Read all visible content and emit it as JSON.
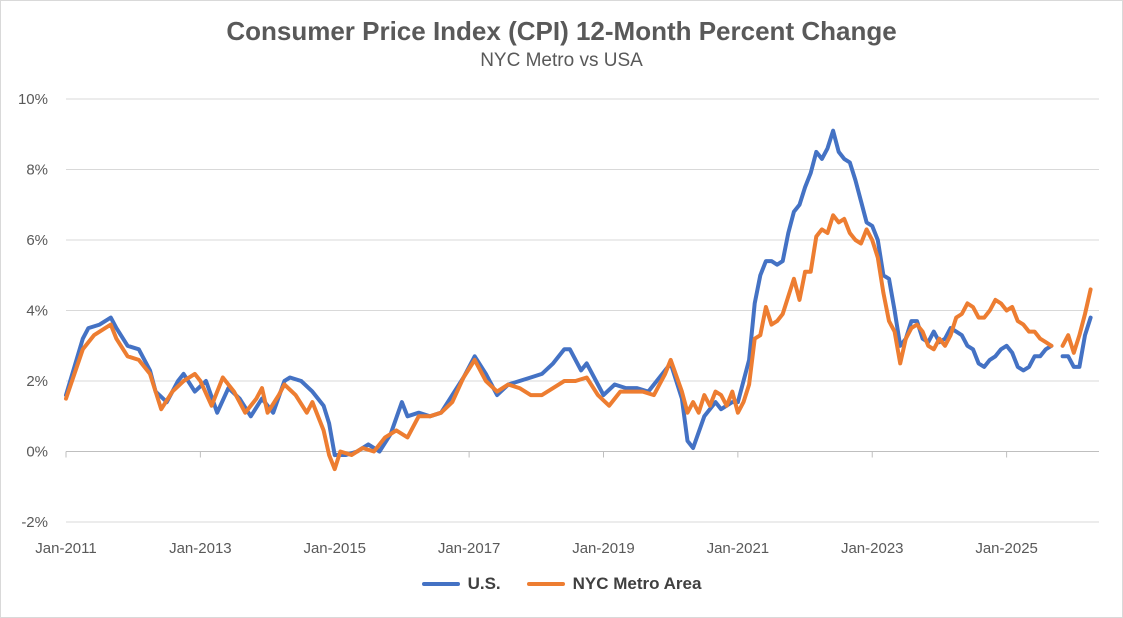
{
  "chart_data": {
    "type": "line",
    "title": "Consumer Price Index (CPI) 12-Month Percent Change",
    "subtitle": "NYC Metro vs USA",
    "xlabel": "",
    "ylabel": "",
    "ylim": [
      -2,
      10
    ],
    "xlim": [
      "Jan-2011",
      "Dec-2025"
    ],
    "grid": true,
    "legend_position": "bottom",
    "y_ticks": [
      "-2%",
      "0%",
      "2%",
      "4%",
      "6%",
      "8%",
      "10%"
    ],
    "x_ticks": [
      "Jan-2011",
      "Jan-2013",
      "Jan-2015",
      "Jan-2017",
      "Jan-2019",
      "Jan-2021",
      "Jan-2023",
      "Jan-2025"
    ],
    "series": [
      {
        "name": "U.S.",
        "color": "#4472c4",
        "points": [
          [
            "Jan-2011",
            1.6
          ],
          [
            "Apr-2011",
            3.2
          ],
          [
            "May-2011",
            3.5
          ],
          [
            "Jul-2011",
            3.6
          ],
          [
            "Sep-2011",
            3.8
          ],
          [
            "Oct-2011",
            3.5
          ],
          [
            "Dec-2011",
            3.0
          ],
          [
            "Feb-2012",
            2.9
          ],
          [
            "Apr-2012",
            2.3
          ],
          [
            "May-2012",
            1.7
          ],
          [
            "Jul-2012",
            1.4
          ],
          [
            "Sep-2012",
            2.0
          ],
          [
            "Oct-2012",
            2.2
          ],
          [
            "Dec-2012",
            1.7
          ],
          [
            "Feb-2013",
            2.0
          ],
          [
            "Apr-2013",
            1.1
          ],
          [
            "Jun-2013",
            1.8
          ],
          [
            "Aug-2013",
            1.5
          ],
          [
            "Oct-2013",
            1.0
          ],
          [
            "Dec-2013",
            1.5
          ],
          [
            "Feb-2014",
            1.1
          ],
          [
            "Apr-2014",
            2.0
          ],
          [
            "May-2014",
            2.1
          ],
          [
            "Jul-2014",
            2.0
          ],
          [
            "Sep-2014",
            1.7
          ],
          [
            "Nov-2014",
            1.3
          ],
          [
            "Dec-2014",
            0.8
          ],
          [
            "Jan-2015",
            -0.1
          ],
          [
            "Mar-2015",
            -0.1
          ],
          [
            "May-2015",
            0.0
          ],
          [
            "Jul-2015",
            0.2
          ],
          [
            "Sep-2015",
            0.0
          ],
          [
            "Nov-2015",
            0.5
          ],
          [
            "Jan-2016",
            1.4
          ],
          [
            "Feb-2016",
            1.0
          ],
          [
            "Apr-2016",
            1.1
          ],
          [
            "Jun-2016",
            1.0
          ],
          [
            "Aug-2016",
            1.1
          ],
          [
            "Oct-2016",
            1.6
          ],
          [
            "Dec-2016",
            2.1
          ],
          [
            "Feb-2017",
            2.7
          ],
          [
            "Apr-2017",
            2.2
          ],
          [
            "Jun-2017",
            1.6
          ],
          [
            "Aug-2017",
            1.9
          ],
          [
            "Oct-2017",
            2.0
          ],
          [
            "Dec-2017",
            2.1
          ],
          [
            "Feb-2018",
            2.2
          ],
          [
            "Apr-2018",
            2.5
          ],
          [
            "Jun-2018",
            2.9
          ],
          [
            "Jul-2018",
            2.9
          ],
          [
            "Sep-2018",
            2.3
          ],
          [
            "Oct-2018",
            2.5
          ],
          [
            "Dec-2018",
            1.9
          ],
          [
            "Jan-2019",
            1.6
          ],
          [
            "Mar-2019",
            1.9
          ],
          [
            "May-2019",
            1.8
          ],
          [
            "Jul-2019",
            1.8
          ],
          [
            "Sep-2019",
            1.7
          ],
          [
            "Nov-2019",
            2.1
          ],
          [
            "Jan-2020",
            2.5
          ],
          [
            "Mar-2020",
            1.5
          ],
          [
            "Apr-2020",
            0.3
          ],
          [
            "May-2020",
            0.1
          ],
          [
            "Jul-2020",
            1.0
          ],
          [
            "Sep-2020",
            1.4
          ],
          [
            "Oct-2020",
            1.2
          ],
          [
            "Dec-2020",
            1.4
          ],
          [
            "Jan-2021",
            1.4
          ],
          [
            "Mar-2021",
            2.6
          ],
          [
            "Apr-2021",
            4.2
          ],
          [
            "May-2021",
            5.0
          ],
          [
            "Jun-2021",
            5.4
          ],
          [
            "Jul-2021",
            5.4
          ],
          [
            "Aug-2021",
            5.3
          ],
          [
            "Sep-2021",
            5.4
          ],
          [
            "Oct-2021",
            6.2
          ],
          [
            "Nov-2021",
            6.8
          ],
          [
            "Dec-2021",
            7.0
          ],
          [
            "Jan-2022",
            7.5
          ],
          [
            "Feb-2022",
            7.9
          ],
          [
            "Mar-2022",
            8.5
          ],
          [
            "Apr-2022",
            8.3
          ],
          [
            "May-2022",
            8.6
          ],
          [
            "Jun-2022",
            9.1
          ],
          [
            "Jul-2022",
            8.5
          ],
          [
            "Aug-2022",
            8.3
          ],
          [
            "Sep-2022",
            8.2
          ],
          [
            "Oct-2022",
            7.7
          ],
          [
            "Nov-2022",
            7.1
          ],
          [
            "Dec-2022",
            6.5
          ],
          [
            "Jan-2023",
            6.4
          ],
          [
            "Feb-2023",
            6.0
          ],
          [
            "Mar-2023",
            5.0
          ],
          [
            "Apr-2023",
            4.9
          ],
          [
            "May-2023",
            4.0
          ],
          [
            "Jun-2023",
            3.0
          ],
          [
            "Jul-2023",
            3.2
          ],
          [
            "Aug-2023",
            3.7
          ],
          [
            "Sep-2023",
            3.7
          ],
          [
            "Oct-2023",
            3.2
          ],
          [
            "Nov-2023",
            3.1
          ],
          [
            "Dec-2023",
            3.4
          ],
          [
            "Jan-2024",
            3.1
          ],
          [
            "Feb-2024",
            3.2
          ],
          [
            "Mar-2024",
            3.5
          ],
          [
            "Apr-2024",
            3.4
          ],
          [
            "May-2024",
            3.3
          ],
          [
            "Jun-2024",
            3.0
          ],
          [
            "Jul-2024",
            2.9
          ],
          [
            "Aug-2024",
            2.5
          ],
          [
            "Sep-2024",
            2.4
          ],
          [
            "Oct-2024",
            2.6
          ],
          [
            "Nov-2024",
            2.7
          ],
          [
            "Dec-2024",
            2.9
          ],
          [
            "Jan-2025",
            3.0
          ],
          [
            "Feb-2025",
            2.8
          ],
          [
            "Mar-2025",
            2.4
          ],
          [
            "Apr-2025",
            2.3
          ],
          [
            "May-2025",
            2.4
          ],
          [
            "Jun-2025",
            2.7
          ],
          [
            "Jul-2025",
            2.7
          ],
          [
            "Aug-2025",
            2.9
          ],
          [
            "Sep-2025",
            3.0
          ],
          [
            "Oct-2025",
            null
          ],
          [
            "Nov-2025",
            2.7
          ],
          [
            "Dec-2025",
            2.7
          ],
          [
            "Jan-2026",
            2.4
          ],
          [
            "Feb-2026",
            2.4
          ],
          [
            "Mar-2026",
            3.3
          ],
          [
            "Apr-2026",
            3.8
          ]
        ]
      },
      {
        "name": "NYC Metro Area",
        "color": "#ed7d31",
        "points": [
          [
            "Jan-2011",
            1.5
          ],
          [
            "Apr-2011",
            2.9
          ],
          [
            "Jun-2011",
            3.3
          ],
          [
            "Aug-2011",
            3.5
          ],
          [
            "Sep-2011",
            3.6
          ],
          [
            "Oct-2011",
            3.2
          ],
          [
            "Dec-2011",
            2.7
          ],
          [
            "Feb-2012",
            2.6
          ],
          [
            "Apr-2012",
            2.2
          ],
          [
            "Jun-2012",
            1.2
          ],
          [
            "Aug-2012",
            1.7
          ],
          [
            "Oct-2012",
            2.0
          ],
          [
            "Dec-2012",
            2.2
          ],
          [
            "Jan-2013",
            2.0
          ],
          [
            "Mar-2013",
            1.3
          ],
          [
            "May-2013",
            2.1
          ],
          [
            "Jul-2013",
            1.7
          ],
          [
            "Sep-2013",
            1.1
          ],
          [
            "Nov-2013",
            1.5
          ],
          [
            "Dec-2013",
            1.8
          ],
          [
            "Jan-2014",
            1.1
          ],
          [
            "Mar-2014",
            1.6
          ],
          [
            "Apr-2014",
            1.9
          ],
          [
            "Jun-2014",
            1.6
          ],
          [
            "Aug-2014",
            1.1
          ],
          [
            "Sep-2014",
            1.4
          ],
          [
            "Nov-2014",
            0.6
          ],
          [
            "Dec-2014",
            -0.1
          ],
          [
            "Jan-2015",
            -0.5
          ],
          [
            "Feb-2015",
            0.0
          ],
          [
            "Apr-2015",
            -0.1
          ],
          [
            "Jun-2015",
            0.1
          ],
          [
            "Aug-2015",
            0.0
          ],
          [
            "Oct-2015",
            0.4
          ],
          [
            "Dec-2015",
            0.6
          ],
          [
            "Feb-2016",
            0.4
          ],
          [
            "Apr-2016",
            1.0
          ],
          [
            "Jun-2016",
            1.0
          ],
          [
            "Aug-2016",
            1.1
          ],
          [
            "Oct-2016",
            1.4
          ],
          [
            "Dec-2016",
            2.1
          ],
          [
            "Feb-2017",
            2.6
          ],
          [
            "Apr-2017",
            2.0
          ],
          [
            "Jun-2017",
            1.7
          ],
          [
            "Aug-2017",
            1.9
          ],
          [
            "Oct-2017",
            1.8
          ],
          [
            "Dec-2017",
            1.6
          ],
          [
            "Feb-2018",
            1.6
          ],
          [
            "Apr-2018",
            1.8
          ],
          [
            "Jun-2018",
            2.0
          ],
          [
            "Aug-2018",
            2.0
          ],
          [
            "Oct-2018",
            2.1
          ],
          [
            "Dec-2018",
            1.6
          ],
          [
            "Feb-2019",
            1.3
          ],
          [
            "Apr-2019",
            1.7
          ],
          [
            "Jun-2019",
            1.7
          ],
          [
            "Aug-2019",
            1.7
          ],
          [
            "Oct-2019",
            1.6
          ],
          [
            "Dec-2019",
            2.2
          ],
          [
            "Jan-2020",
            2.6
          ],
          [
            "Mar-2020",
            1.7
          ],
          [
            "Apr-2020",
            1.1
          ],
          [
            "May-2020",
            1.4
          ],
          [
            "Jun-2020",
            1.1
          ],
          [
            "Jul-2020",
            1.6
          ],
          [
            "Aug-2020",
            1.3
          ],
          [
            "Sep-2020",
            1.7
          ],
          [
            "Oct-2020",
            1.6
          ],
          [
            "Nov-2020",
            1.3
          ],
          [
            "Dec-2020",
            1.7
          ],
          [
            "Jan-2021",
            1.1
          ],
          [
            "Feb-2021",
            1.4
          ],
          [
            "Mar-2021",
            1.9
          ],
          [
            "Apr-2021",
            3.2
          ],
          [
            "May-2021",
            3.3
          ],
          [
            "Jun-2021",
            4.1
          ],
          [
            "Jul-2021",
            3.6
          ],
          [
            "Aug-2021",
            3.7
          ],
          [
            "Sep-2021",
            3.9
          ],
          [
            "Oct-2021",
            4.4
          ],
          [
            "Nov-2021",
            4.9
          ],
          [
            "Dec-2021",
            4.3
          ],
          [
            "Jan-2022",
            5.1
          ],
          [
            "Feb-2022",
            5.1
          ],
          [
            "Mar-2022",
            6.1
          ],
          [
            "Apr-2022",
            6.3
          ],
          [
            "May-2022",
            6.2
          ],
          [
            "Jun-2022",
            6.7
          ],
          [
            "Jul-2022",
            6.5
          ],
          [
            "Aug-2022",
            6.6
          ],
          [
            "Sep-2022",
            6.2
          ],
          [
            "Oct-2022",
            6.0
          ],
          [
            "Nov-2022",
            5.9
          ],
          [
            "Dec-2022",
            6.3
          ],
          [
            "Jan-2023",
            6.0
          ],
          [
            "Feb-2023",
            5.5
          ],
          [
            "Mar-2023",
            4.5
          ],
          [
            "Apr-2023",
            3.7
          ],
          [
            "May-2023",
            3.4
          ],
          [
            "Jun-2023",
            2.5
          ],
          [
            "Jul-2023",
            3.2
          ],
          [
            "Aug-2023",
            3.5
          ],
          [
            "Sep-2023",
            3.6
          ],
          [
            "Oct-2023",
            3.4
          ],
          [
            "Nov-2023",
            3.0
          ],
          [
            "Dec-2023",
            2.9
          ],
          [
            "Jan-2024",
            3.2
          ],
          [
            "Feb-2024",
            3.0
          ],
          [
            "Mar-2024",
            3.3
          ],
          [
            "Apr-2024",
            3.8
          ],
          [
            "May-2024",
            3.9
          ],
          [
            "Jun-2024",
            4.2
          ],
          [
            "Jul-2024",
            4.1
          ],
          [
            "Aug-2024",
            3.8
          ],
          [
            "Sep-2024",
            3.8
          ],
          [
            "Oct-2024",
            4.0
          ],
          [
            "Nov-2024",
            4.3
          ],
          [
            "Dec-2024",
            4.2
          ],
          [
            "Jan-2025",
            4.0
          ],
          [
            "Feb-2025",
            4.1
          ],
          [
            "Mar-2025",
            3.7
          ],
          [
            "Apr-2025",
            3.6
          ],
          [
            "May-2025",
            3.4
          ],
          [
            "Jun-2025",
            3.4
          ],
          [
            "Jul-2025",
            3.2
          ],
          [
            "Aug-2025",
            3.1
          ],
          [
            "Sep-2025",
            3.0
          ],
          [
            "Oct-2025",
            null
          ],
          [
            "Nov-2025",
            3.0
          ],
          [
            "Dec-2025",
            3.3
          ],
          [
            "Jan-2026",
            2.8
          ],
          [
            "Feb-2026",
            3.3
          ],
          [
            "Mar-2026",
            3.9
          ],
          [
            "Apr-2026",
            4.6
          ]
        ]
      }
    ]
  }
}
